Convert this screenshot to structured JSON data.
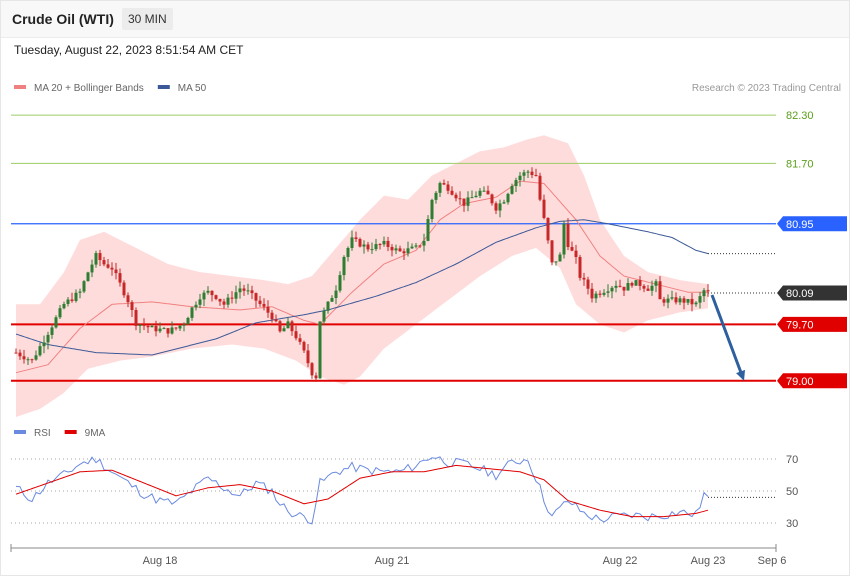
{
  "header": {
    "title": "Crude Oil (WTI)",
    "timeframe": "30 MIN",
    "datetime": "Tuesday, August 22, 2023 8:51:54 AM CET",
    "credit": "Research © 2023 Trading Central"
  },
  "colors": {
    "up": "#2e7d32",
    "down": "#c62828",
    "band_fill": "#ffd6d6",
    "ma20": "#f08080",
    "ma50": "#3b5998",
    "resistance": "#9ccc65",
    "resistance_text": "#5a9e1a",
    "pivot": "#2962ff",
    "support": "#e00000",
    "arrow": "#2e5f9e",
    "rsi": "#6a8ae0",
    "rsi_ma": "#e00000"
  },
  "chart_data": [
    {
      "type": "candlestick",
      "legend": [
        {
          "name": "MA 20 + Bollinger Bands",
          "color": "#f08080"
        },
        {
          "name": "MA 50",
          "color": "#3b5998"
        }
      ],
      "ylim": [
        78.55,
        82.5
      ],
      "x_ticks": [
        {
          "label": "Aug 18",
          "index": 36
        },
        {
          "label": "Aug 21",
          "index": 94
        },
        {
          "label": "Aug 22",
          "index": 151
        },
        {
          "label": "Aug 23",
          "index": 173
        },
        {
          "label": "Sep 6",
          "index": 189
        }
      ],
      "levels": [
        {
          "label": "82.30",
          "value": 82.3,
          "kind": "resistance"
        },
        {
          "label": "81.70",
          "value": 81.7,
          "kind": "resistance"
        },
        {
          "label": "80.95",
          "value": 80.95,
          "kind": "pivot"
        },
        {
          "label": "80.09",
          "value": 80.09,
          "kind": "last"
        },
        {
          "label": "79.70",
          "value": 79.7,
          "kind": "support"
        },
        {
          "label": "79.00",
          "value": 79.0,
          "kind": "support"
        }
      ],
      "close_anchors": [
        [
          0,
          79.35
        ],
        [
          4,
          79.25
        ],
        [
          8,
          79.6
        ],
        [
          12,
          79.95
        ],
        [
          16,
          80.1
        ],
        [
          18,
          80.35
        ],
        [
          20,
          80.55
        ],
        [
          22,
          80.45
        ],
        [
          24,
          80.4
        ],
        [
          26,
          80.2
        ],
        [
          28,
          80.0
        ],
        [
          30,
          79.72
        ],
        [
          34,
          79.65
        ],
        [
          38,
          79.62
        ],
        [
          40,
          79.65
        ],
        [
          42,
          79.72
        ],
        [
          44,
          79.9
        ],
        [
          46,
          80.05
        ],
        [
          48,
          80.1
        ],
        [
          50,
          80.05
        ],
        [
          52,
          79.95
        ],
        [
          54,
          80.05
        ],
        [
          56,
          80.15
        ],
        [
          58,
          80.1
        ],
        [
          60,
          80.0
        ],
        [
          62,
          79.9
        ],
        [
          64,
          79.8
        ],
        [
          66,
          79.6
        ],
        [
          68,
          79.7
        ],
        [
          70,
          79.55
        ],
        [
          72,
          79.35
        ],
        [
          74,
          79.1
        ],
        [
          75,
          79.05
        ],
        [
          76,
          79.75
        ],
        [
          78,
          79.95
        ],
        [
          80,
          80.15
        ],
        [
          82,
          80.55
        ],
        [
          84,
          80.75
        ],
        [
          86,
          80.7
        ],
        [
          88,
          80.65
        ],
        [
          92,
          80.7
        ],
        [
          94,
          80.65
        ],
        [
          96,
          80.6
        ],
        [
          100,
          80.65
        ],
        [
          102,
          80.75
        ],
        [
          104,
          81.25
        ],
        [
          106,
          81.45
        ],
        [
          108,
          81.4
        ],
        [
          112,
          81.2
        ],
        [
          116,
          81.35
        ],
        [
          118,
          81.3
        ],
        [
          120,
          81.15
        ],
        [
          122,
          81.25
        ],
        [
          124,
          81.45
        ],
        [
          126,
          81.55
        ],
        [
          128,
          81.6
        ],
        [
          130,
          81.55
        ],
        [
          131,
          81.25
        ],
        [
          132,
          81.0
        ],
        [
          134,
          80.45
        ],
        [
          136,
          80.55
        ],
        [
          137,
          80.95
        ],
        [
          138,
          80.7
        ],
        [
          140,
          80.5
        ],
        [
          141,
          80.3
        ],
        [
          143,
          80.15
        ],
        [
          144,
          80.05
        ],
        [
          146,
          80.1
        ],
        [
          148,
          80.15
        ],
        [
          150,
          80.2
        ],
        [
          152,
          80.15
        ],
        [
          154,
          80.22
        ],
        [
          156,
          80.2
        ],
        [
          158,
          80.15
        ],
        [
          160,
          80.2
        ],
        [
          161,
          80.0
        ],
        [
          162,
          80.0
        ],
        [
          164,
          80.0
        ],
        [
          166,
          80.0
        ],
        [
          168,
          79.98
        ],
        [
          170,
          79.95
        ],
        [
          172,
          80.12
        ],
        [
          173,
          80.09
        ]
      ],
      "ma50_points": [
        [
          0,
          79.58
        ],
        [
          8,
          79.45
        ],
        [
          20,
          79.35
        ],
        [
          34,
          79.32
        ],
        [
          50,
          79.52
        ],
        [
          60,
          79.72
        ],
        [
          72,
          79.82
        ],
        [
          78,
          79.88
        ],
        [
          90,
          80.05
        ],
        [
          100,
          80.22
        ],
        [
          110,
          80.45
        ],
        [
          120,
          80.72
        ],
        [
          130,
          80.9
        ],
        [
          136,
          80.98
        ],
        [
          142,
          81.0
        ],
        [
          148,
          80.95
        ],
        [
          158,
          80.85
        ],
        [
          164,
          80.78
        ],
        [
          170,
          80.62
        ],
        [
          173,
          80.58
        ]
      ],
      "ma20_points": [
        [
          0,
          79.1
        ],
        [
          8,
          79.2
        ],
        [
          16,
          79.65
        ],
        [
          24,
          79.95
        ],
        [
          34,
          79.98
        ],
        [
          44,
          79.92
        ],
        [
          56,
          79.88
        ],
        [
          64,
          79.92
        ],
        [
          72,
          79.75
        ],
        [
          76,
          79.7
        ],
        [
          84,
          80.1
        ],
        [
          92,
          80.45
        ],
        [
          100,
          80.62
        ],
        [
          106,
          81.0
        ],
        [
          112,
          81.2
        ],
        [
          120,
          81.28
        ],
        [
          126,
          81.48
        ],
        [
          132,
          81.45
        ],
        [
          140,
          81.0
        ],
        [
          146,
          80.55
        ],
        [
          152,
          80.3
        ],
        [
          160,
          80.2
        ],
        [
          168,
          80.1
        ],
        [
          173,
          80.1
        ]
      ],
      "band_upper": [
        [
          0,
          79.95
        ],
        [
          6,
          79.95
        ],
        [
          12,
          80.35
        ],
        [
          16,
          80.75
        ],
        [
          22,
          80.85
        ],
        [
          30,
          80.65
        ],
        [
          38,
          80.45
        ],
        [
          46,
          80.35
        ],
        [
          54,
          80.3
        ],
        [
          62,
          80.25
        ],
        [
          68,
          80.2
        ],
        [
          74,
          80.3
        ],
        [
          80,
          80.65
        ],
        [
          86,
          81.0
        ],
        [
          92,
          81.3
        ],
        [
          98,
          81.25
        ],
        [
          104,
          81.55
        ],
        [
          110,
          81.7
        ],
        [
          116,
          81.85
        ],
        [
          122,
          81.9
        ],
        [
          128,
          82.0
        ],
        [
          132,
          82.05
        ],
        [
          138,
          81.95
        ],
        [
          142,
          81.55
        ],
        [
          146,
          81.0
        ],
        [
          152,
          80.55
        ],
        [
          158,
          80.35
        ],
        [
          166,
          80.25
        ],
        [
          173,
          80.2
        ]
      ],
      "band_lower": [
        [
          0,
          78.55
        ],
        [
          6,
          78.65
        ],
        [
          12,
          78.85
        ],
        [
          18,
          79.15
        ],
        [
          26,
          79.25
        ],
        [
          34,
          79.3
        ],
        [
          44,
          79.4
        ],
        [
          54,
          79.45
        ],
        [
          62,
          79.4
        ],
        [
          70,
          79.25
        ],
        [
          76,
          79.05
        ],
        [
          82,
          78.95
        ],
        [
          86,
          79.05
        ],
        [
          92,
          79.4
        ],
        [
          100,
          79.7
        ],
        [
          108,
          80.0
        ],
        [
          116,
          80.3
        ],
        [
          124,
          80.55
        ],
        [
          130,
          80.65
        ],
        [
          136,
          80.4
        ],
        [
          140,
          79.95
        ],
        [
          146,
          79.7
        ],
        [
          152,
          79.6
        ],
        [
          158,
          79.75
        ],
        [
          166,
          79.85
        ],
        [
          173,
          79.9
        ]
      ],
      "forecast_arrow": {
        "from": [
          173,
          80.09
        ],
        "to": [
          182,
          79.0
        ]
      }
    },
    {
      "type": "line",
      "legend": [
        {
          "name": "RSI",
          "color": "#6a8ae0"
        },
        {
          "name": "9MA",
          "color": "#e00000"
        }
      ],
      "ylim": [
        20,
        80
      ],
      "y_ticks": [
        {
          "label": "70",
          "value": 70
        },
        {
          "label": "50",
          "value": 50
        },
        {
          "label": "30",
          "value": 30
        }
      ],
      "rsi_points": [
        [
          0,
          52
        ],
        [
          4,
          45
        ],
        [
          8,
          55
        ],
        [
          12,
          60
        ],
        [
          16,
          67
        ],
        [
          20,
          70
        ],
        [
          24,
          62
        ],
        [
          28,
          55
        ],
        [
          32,
          48
        ],
        [
          36,
          44
        ],
        [
          40,
          42
        ],
        [
          44,
          50
        ],
        [
          48,
          58
        ],
        [
          52,
          52
        ],
        [
          56,
          47
        ],
        [
          60,
          55
        ],
        [
          64,
          50
        ],
        [
          66,
          42
        ],
        [
          68,
          38
        ],
        [
          70,
          35
        ],
        [
          72,
          34
        ],
        [
          74,
          32
        ],
        [
          76,
          55
        ],
        [
          80,
          62
        ],
        [
          84,
          65
        ],
        [
          88,
          63
        ],
        [
          92,
          62
        ],
        [
          96,
          62
        ],
        [
          100,
          66
        ],
        [
          104,
          72
        ],
        [
          108,
          68
        ],
        [
          112,
          67
        ],
        [
          116,
          64
        ],
        [
          120,
          60
        ],
        [
          124,
          68
        ],
        [
          128,
          70
        ],
        [
          130,
          58
        ],
        [
          132,
          45
        ],
        [
          134,
          34
        ],
        [
          138,
          44
        ],
        [
          142,
          36
        ],
        [
          146,
          32
        ],
        [
          150,
          34
        ],
        [
          154,
          35
        ],
        [
          158,
          34
        ],
        [
          162,
          35
        ],
        [
          166,
          37
        ],
        [
          170,
          35
        ],
        [
          172,
          48
        ],
        [
          173,
          46
        ]
      ],
      "ma_points": [
        [
          0,
          48
        ],
        [
          8,
          55
        ],
        [
          16,
          62
        ],
        [
          24,
          63
        ],
        [
          32,
          55
        ],
        [
          40,
          47
        ],
        [
          48,
          52
        ],
        [
          56,
          54
        ],
        [
          64,
          50
        ],
        [
          72,
          42
        ],
        [
          78,
          45
        ],
        [
          86,
          58
        ],
        [
          94,
          62
        ],
        [
          102,
          62
        ],
        [
          110,
          66
        ],
        [
          118,
          64
        ],
        [
          126,
          62
        ],
        [
          132,
          57
        ],
        [
          138,
          44
        ],
        [
          146,
          38
        ],
        [
          154,
          34
        ],
        [
          162,
          34
        ],
        [
          170,
          36
        ],
        [
          173,
          38
        ]
      ]
    }
  ]
}
